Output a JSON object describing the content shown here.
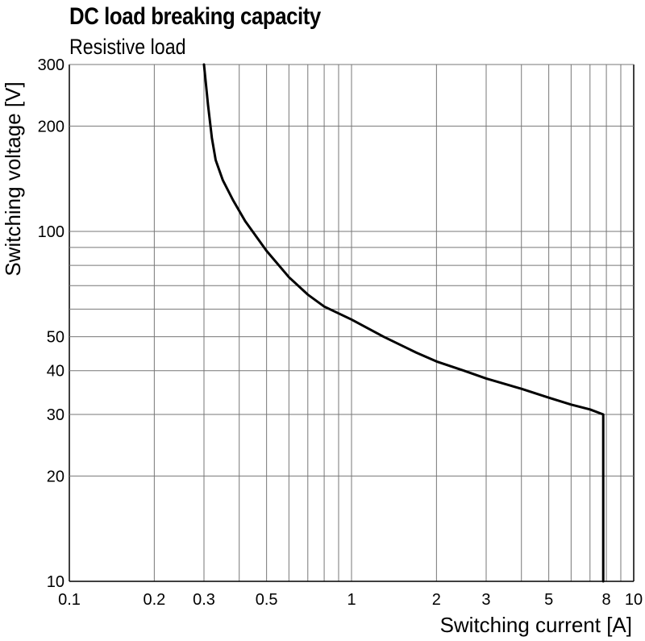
{
  "header": {
    "title": "DC load breaking capacity",
    "subtitle": "Resistive load"
  },
  "chart_data": {
    "type": "line",
    "title": "DC load breaking capacity",
    "subtitle": "Resistive load",
    "xlabel": "Switching current [A]",
    "ylabel": "Switching voltage [V]",
    "xscale": "log",
    "yscale": "log",
    "xlim": [
      0.1,
      10
    ],
    "ylim": [
      10,
      300
    ],
    "grid": true,
    "x_gridlines": [
      0.1,
      0.2,
      0.3,
      0.4,
      0.5,
      0.6,
      0.7,
      0.8,
      0.9,
      1,
      2,
      3,
      4,
      5,
      6,
      7,
      8,
      9,
      10
    ],
    "y_gridlines": [
      10,
      20,
      30,
      40,
      50,
      60,
      70,
      80,
      90,
      100,
      200,
      300
    ],
    "x_tick_labels": [
      {
        "value": 0.1,
        "label": "0.1"
      },
      {
        "value": 0.2,
        "label": "0.2"
      },
      {
        "value": 0.3,
        "label": "0.3"
      },
      {
        "value": 0.5,
        "label": "0.5"
      },
      {
        "value": 1,
        "label": "1"
      },
      {
        "value": 2,
        "label": "2"
      },
      {
        "value": 3,
        "label": "3"
      },
      {
        "value": 5,
        "label": "5"
      },
      {
        "value": 8,
        "label": "8"
      },
      {
        "value": 10,
        "label": "10"
      }
    ],
    "y_tick_labels": [
      {
        "value": 10,
        "label": "10"
      },
      {
        "value": 20,
        "label": "20"
      },
      {
        "value": 30,
        "label": "30"
      },
      {
        "value": 40,
        "label": "40"
      },
      {
        "value": 50,
        "label": "50"
      },
      {
        "value": 100,
        "label": "100"
      },
      {
        "value": 200,
        "label": "200"
      },
      {
        "value": 300,
        "label": "300"
      }
    ],
    "series": [
      {
        "color": "#000000",
        "points": [
          [
            0.3,
            300
          ],
          [
            0.31,
            230
          ],
          [
            0.32,
            185
          ],
          [
            0.33,
            160
          ],
          [
            0.35,
            140
          ],
          [
            0.38,
            123
          ],
          [
            0.42,
            107
          ],
          [
            0.5,
            88
          ],
          [
            0.6,
            74
          ],
          [
            0.7,
            66
          ],
          [
            0.8,
            61
          ],
          [
            1.0,
            56
          ],
          [
            1.3,
            50
          ],
          [
            1.7,
            45
          ],
          [
            2.0,
            42.5
          ],
          [
            2.5,
            40
          ],
          [
            3.0,
            38
          ],
          [
            4.0,
            35.5
          ],
          [
            5.0,
            33.5
          ],
          [
            6.0,
            32
          ],
          [
            7.0,
            31
          ],
          [
            7.8,
            30
          ],
          [
            7.8,
            10
          ]
        ]
      }
    ]
  }
}
